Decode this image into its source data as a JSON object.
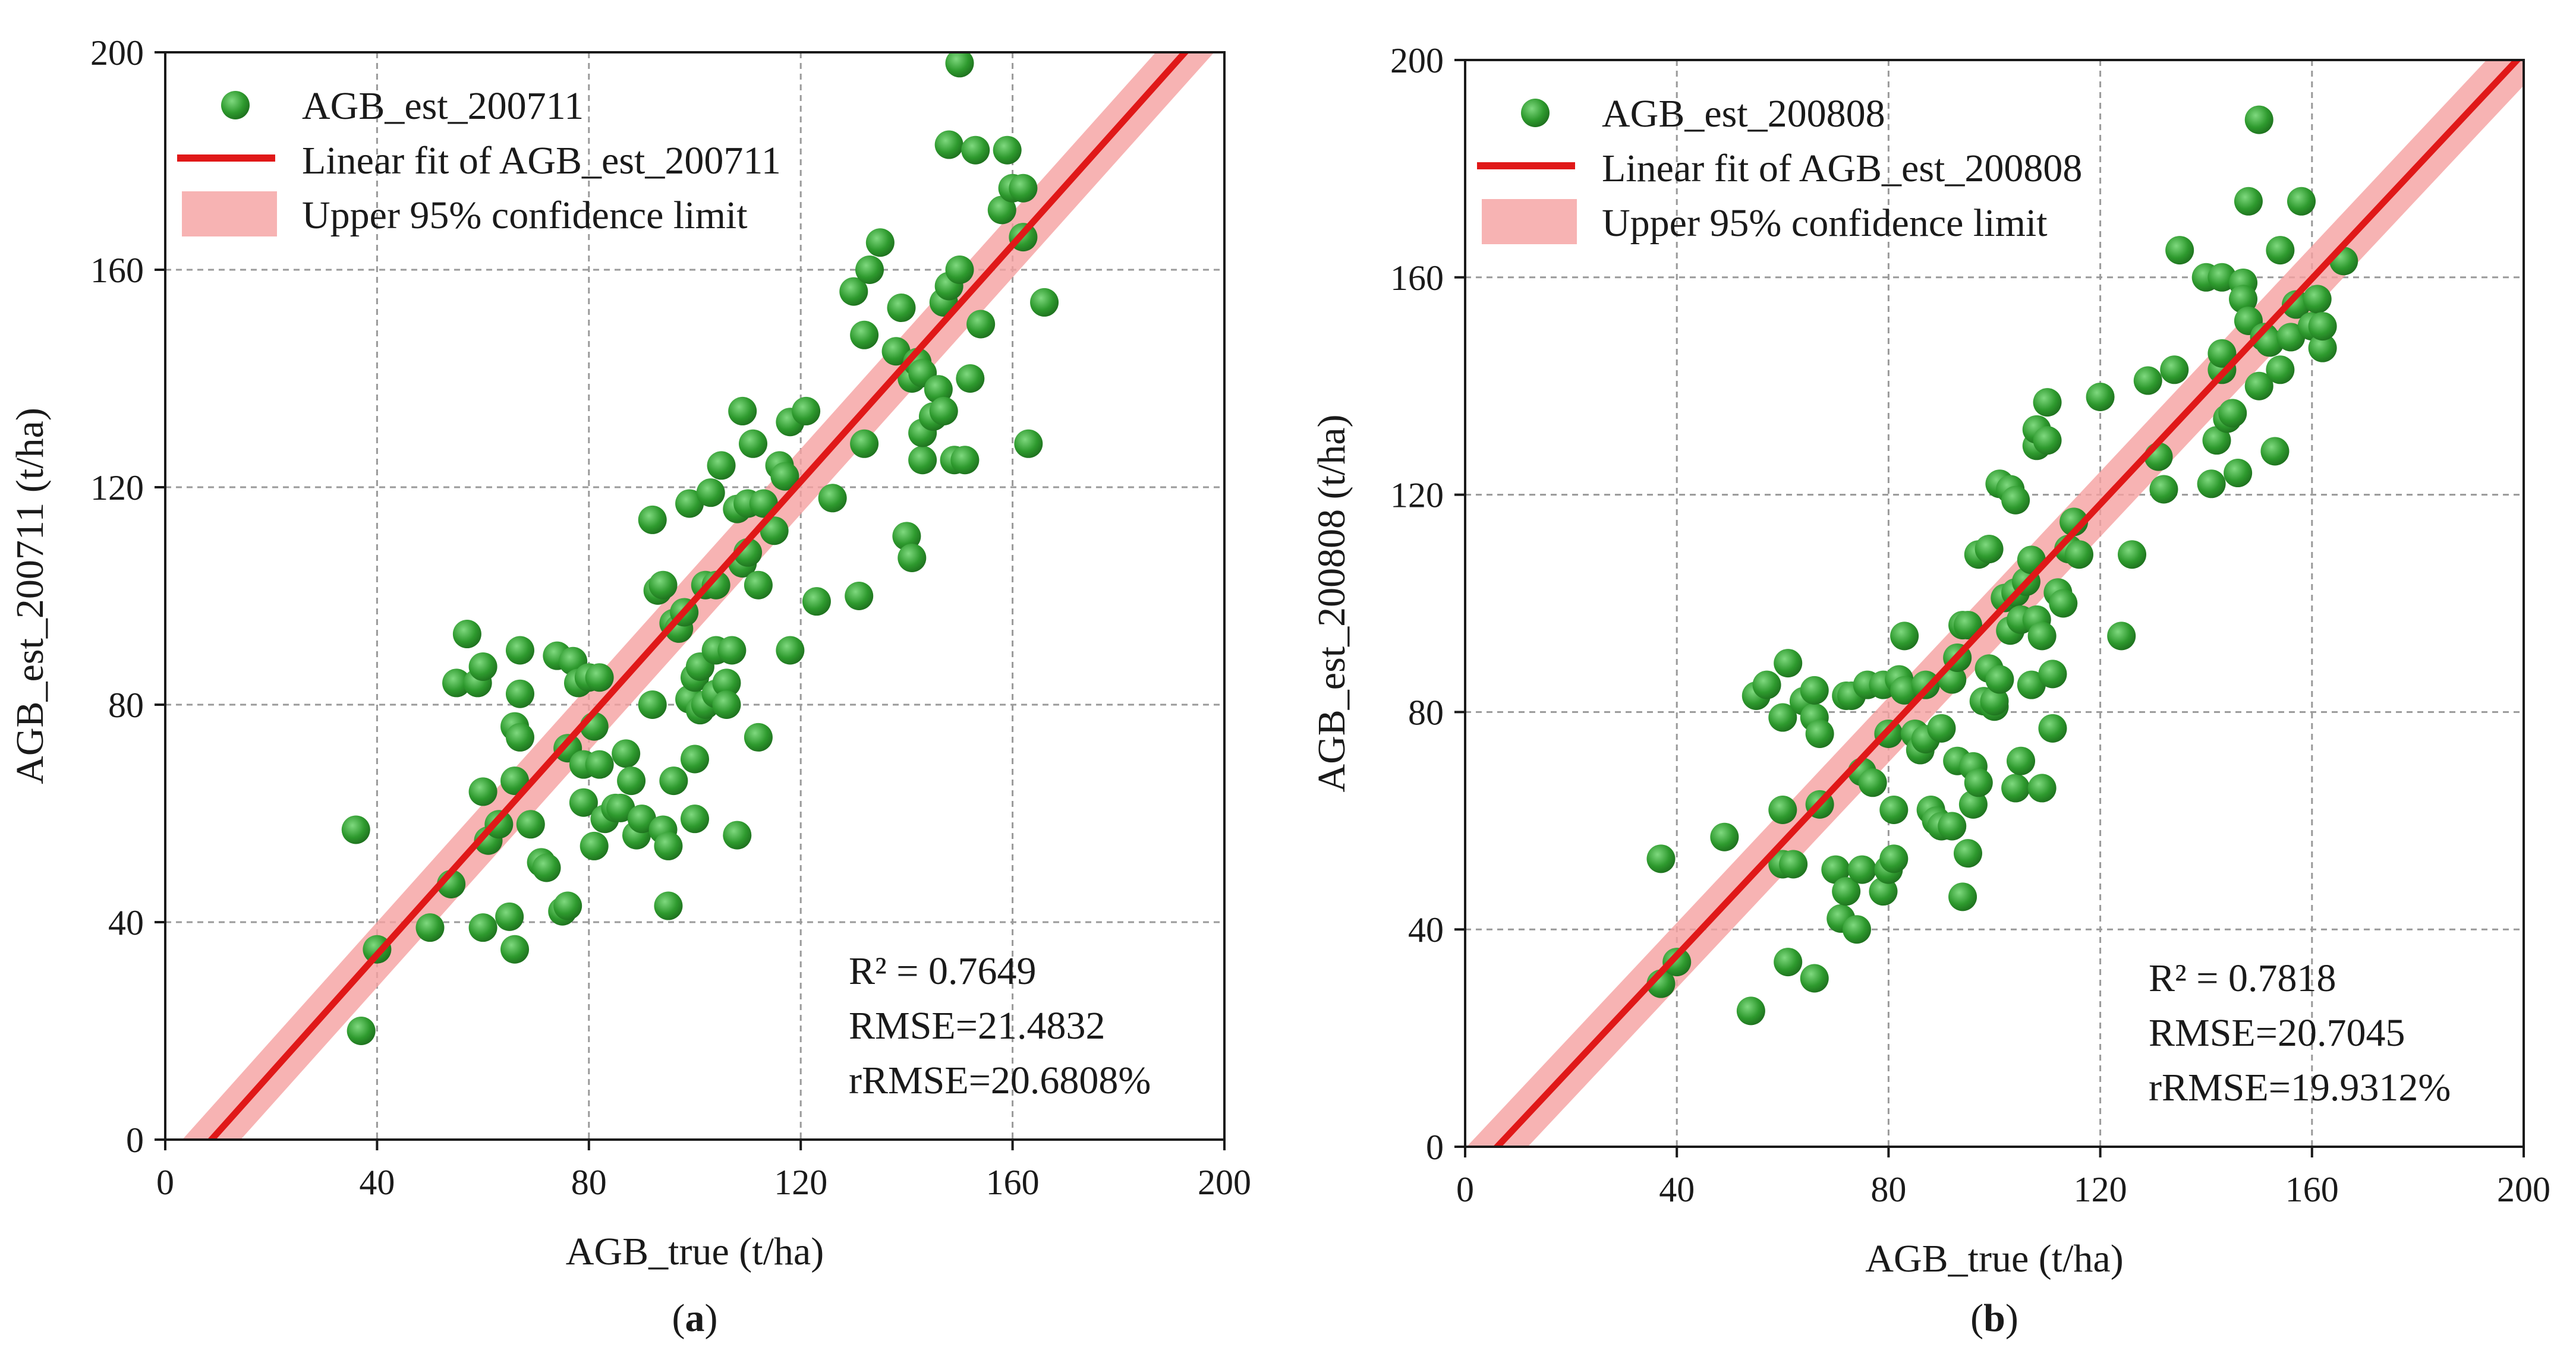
{
  "chart_data": [
    {
      "type": "scatter",
      "panel_label_prefix": "(",
      "panel_label_letter": "a",
      "panel_label_suffix": ")",
      "xlabel": "AGB_true (t/ha)",
      "ylabel": "AGB_est_200711 (t/ha)",
      "xlim": [
        0,
        200
      ],
      "ylim": [
        0,
        200
      ],
      "xticks": [
        "0",
        "40",
        "80",
        "120",
        "160",
        "200"
      ],
      "yticks": [
        "0",
        "40",
        "80",
        "120",
        "160",
        "200"
      ],
      "grid": true,
      "legend_position": "top-left",
      "legend": [
        "AGB_est_200711",
        "Linear fit of AGB_est_200711",
        "Upper 95% confidence limit"
      ],
      "stats": [
        "R² = 0.7649",
        "RMSE=21.4832",
        "rRMSE=20.6808%"
      ],
      "fit": {
        "slope": 1.088,
        "intercept": -9.5,
        "band": 6
      },
      "colors": {
        "points": "#2e9a2e",
        "fit": "#e01818",
        "band": "#f5a0a0"
      },
      "points": [
        [
          36,
          57
        ],
        [
          37,
          20
        ],
        [
          40,
          35
        ],
        [
          50,
          39
        ],
        [
          54,
          47
        ],
        [
          55,
          84
        ],
        [
          57,
          93
        ],
        [
          59,
          84
        ],
        [
          60,
          64
        ],
        [
          60,
          87
        ],
        [
          60,
          39
        ],
        [
          61,
          55
        ],
        [
          63,
          58
        ],
        [
          65,
          41
        ],
        [
          66,
          35
        ],
        [
          66,
          66
        ],
        [
          66,
          76
        ],
        [
          67,
          90
        ],
        [
          67,
          82
        ],
        [
          67,
          74
        ],
        [
          69,
          58
        ],
        [
          71,
          51
        ],
        [
          72,
          50
        ],
        [
          74,
          89
        ],
        [
          75,
          42
        ],
        [
          76,
          43
        ],
        [
          76,
          72
        ],
        [
          77,
          88
        ],
        [
          78,
          84
        ],
        [
          79,
          62
        ],
        [
          79,
          69
        ],
        [
          80,
          85
        ],
        [
          81,
          76
        ],
        [
          81,
          54
        ],
        [
          82,
          69
        ],
        [
          82,
          85
        ],
        [
          83,
          59
        ],
        [
          85,
          61
        ],
        [
          86,
          61
        ],
        [
          87,
          71
        ],
        [
          88,
          66
        ],
        [
          89,
          56
        ],
        [
          90,
          59
        ],
        [
          92,
          80
        ],
        [
          92,
          114
        ],
        [
          93,
          101
        ],
        [
          94,
          102
        ],
        [
          94,
          57
        ],
        [
          95,
          43
        ],
        [
          95,
          54
        ],
        [
          96,
          66
        ],
        [
          96,
          95
        ],
        [
          97,
          94
        ],
        [
          98,
          97
        ],
        [
          99,
          81
        ],
        [
          99,
          117
        ],
        [
          100,
          70
        ],
        [
          100,
          85
        ],
        [
          100,
          59
        ],
        [
          101,
          79
        ],
        [
          101,
          87
        ],
        [
          102,
          80
        ],
        [
          102,
          102
        ],
        [
          103,
          119
        ],
        [
          104,
          82
        ],
        [
          104,
          102
        ],
        [
          104,
          90
        ],
        [
          105,
          124
        ],
        [
          106,
          84
        ],
        [
          106,
          80
        ],
        [
          107,
          90
        ],
        [
          108,
          116
        ],
        [
          108,
          56
        ],
        [
          109,
          134
        ],
        [
          109,
          106
        ],
        [
          110,
          117
        ],
        [
          110,
          108
        ],
        [
          111,
          128
        ],
        [
          112,
          102
        ],
        [
          112,
          74
        ],
        [
          113,
          117
        ],
        [
          115,
          112
        ],
        [
          116,
          124
        ],
        [
          117,
          122
        ],
        [
          118,
          132
        ],
        [
          118,
          90
        ],
        [
          121,
          134
        ],
        [
          123,
          99
        ],
        [
          126,
          118
        ],
        [
          130,
          156
        ],
        [
          131,
          100
        ],
        [
          132,
          128
        ],
        [
          132,
          148
        ],
        [
          133,
          160
        ],
        [
          135,
          165
        ],
        [
          138,
          145
        ],
        [
          139,
          153
        ],
        [
          140,
          111
        ],
        [
          141,
          140
        ],
        [
          141,
          107
        ],
        [
          142,
          143
        ],
        [
          143,
          141
        ],
        [
          143,
          125
        ],
        [
          143,
          130
        ],
        [
          145,
          133
        ],
        [
          146,
          138
        ],
        [
          147,
          154
        ],
        [
          147,
          134
        ],
        [
          148,
          183
        ],
        [
          148,
          157
        ],
        [
          149,
          125
        ],
        [
          150,
          160
        ],
        [
          150,
          198
        ],
        [
          151,
          125
        ],
        [
          152,
          140
        ],
        [
          153,
          182
        ],
        [
          154,
          150
        ],
        [
          158,
          171
        ],
        [
          159,
          182
        ],
        [
          160,
          175
        ],
        [
          162,
          166
        ],
        [
          162,
          175
        ],
        [
          163,
          128
        ],
        [
          166,
          154
        ]
      ]
    },
    {
      "type": "scatter",
      "panel_label_prefix": "(",
      "panel_label_letter": "b",
      "panel_label_suffix": ")",
      "xlabel": "AGB_true (t/ha)",
      "ylabel": "AGB_est_200808 (t/ha)",
      "xlim": [
        0,
        200
      ],
      "ylim": [
        0,
        200
      ],
      "xticks": [
        "0",
        "40",
        "80",
        "120",
        "160",
        "200"
      ],
      "yticks": [
        "0",
        "40",
        "80",
        "120",
        "160",
        "200"
      ],
      "grid": true,
      "legend_position": "top-left",
      "legend": [
        "AGB_est_200808",
        "Linear fit of AGB_est_200808",
        "Upper 95% confidence limit"
      ],
      "stats": [
        "R² = 0.7818",
        "RMSE=20.7045",
        "rRMSE=19.9312%"
      ],
      "fit": {
        "slope": 1.038,
        "intercept": -6.3,
        "band": 6
      },
      "colors": {
        "points": "#2e9a2e",
        "fit": "#e01818",
        "band": "#f5a0a0"
      },
      "points": [
        [
          37,
          30
        ],
        [
          37,
          53
        ],
        [
          40,
          34
        ],
        [
          49,
          57
        ],
        [
          54,
          25
        ],
        [
          55,
          83
        ],
        [
          57,
          85
        ],
        [
          60,
          62
        ],
        [
          60,
          79
        ],
        [
          60,
          52
        ],
        [
          61,
          89
        ],
        [
          61,
          34
        ],
        [
          62,
          52
        ],
        [
          64,
          82
        ],
        [
          66,
          31
        ],
        [
          66,
          79
        ],
        [
          66,
          84
        ],
        [
          67,
          76
        ],
        [
          67,
          63
        ],
        [
          70,
          51
        ],
        [
          71,
          42
        ],
        [
          72,
          83
        ],
        [
          72,
          47
        ],
        [
          73,
          83
        ],
        [
          74,
          40
        ],
        [
          75,
          69
        ],
        [
          75,
          51
        ],
        [
          76,
          85
        ],
        [
          77,
          67
        ],
        [
          79,
          85
        ],
        [
          79,
          47
        ],
        [
          80,
          76
        ],
        [
          80,
          51
        ],
        [
          81,
          62
        ],
        [
          81,
          53
        ],
        [
          82,
          86
        ],
        [
          83,
          84
        ],
        [
          83,
          94
        ],
        [
          85,
          76
        ],
        [
          86,
          73
        ],
        [
          87,
          85
        ],
        [
          87,
          75
        ],
        [
          88,
          62
        ],
        [
          89,
          60
        ],
        [
          90,
          77
        ],
        [
          90,
          59
        ],
        [
          92,
          86
        ],
        [
          92,
          59
        ],
        [
          93,
          71
        ],
        [
          93,
          90
        ],
        [
          94,
          96
        ],
        [
          94,
          46
        ],
        [
          95,
          54
        ],
        [
          95,
          96
        ],
        [
          96,
          70
        ],
        [
          96,
          63
        ],
        [
          97,
          109
        ],
        [
          97,
          67
        ],
        [
          98,
          82
        ],
        [
          99,
          88
        ],
        [
          99,
          110
        ],
        [
          100,
          81
        ],
        [
          100,
          82
        ],
        [
          101,
          122
        ],
        [
          101,
          86
        ],
        [
          102,
          101
        ],
        [
          103,
          121
        ],
        [
          103,
          95
        ],
        [
          104,
          66
        ],
        [
          104,
          102
        ],
        [
          104,
          119
        ],
        [
          105,
          71
        ],
        [
          105,
          97
        ],
        [
          106,
          104
        ],
        [
          107,
          108
        ],
        [
          107,
          85
        ],
        [
          108,
          97
        ],
        [
          108,
          129
        ],
        [
          108,
          132
        ],
        [
          109,
          66
        ],
        [
          109,
          94
        ],
        [
          110,
          130
        ],
        [
          110,
          137
        ],
        [
          111,
          87
        ],
        [
          111,
          77
        ],
        [
          112,
          102
        ],
        [
          113,
          100
        ],
        [
          114,
          110
        ],
        [
          115,
          115
        ],
        [
          116,
          109
        ],
        [
          120,
          138
        ],
        [
          124,
          94
        ],
        [
          126,
          109
        ],
        [
          129,
          141
        ],
        [
          131,
          127
        ],
        [
          132,
          121
        ],
        [
          134,
          143
        ],
        [
          135,
          165
        ],
        [
          140,
          160
        ],
        [
          141,
          122
        ],
        [
          142,
          130
        ],
        [
          143,
          143
        ],
        [
          143,
          160
        ],
        [
          143,
          146
        ],
        [
          144,
          134
        ],
        [
          145,
          135
        ],
        [
          146,
          124
        ],
        [
          147,
          159
        ],
        [
          147,
          156
        ],
        [
          148,
          174
        ],
        [
          148,
          152
        ],
        [
          150,
          189
        ],
        [
          150,
          140
        ],
        [
          151,
          149
        ],
        [
          152,
          148
        ],
        [
          153,
          128
        ],
        [
          154,
          143
        ],
        [
          154,
          165
        ],
        [
          156,
          149
        ],
        [
          157,
          155
        ],
        [
          158,
          174
        ],
        [
          160,
          151
        ],
        [
          161,
          156
        ],
        [
          162,
          147
        ],
        [
          162,
          151
        ],
        [
          166,
          163
        ]
      ]
    }
  ]
}
